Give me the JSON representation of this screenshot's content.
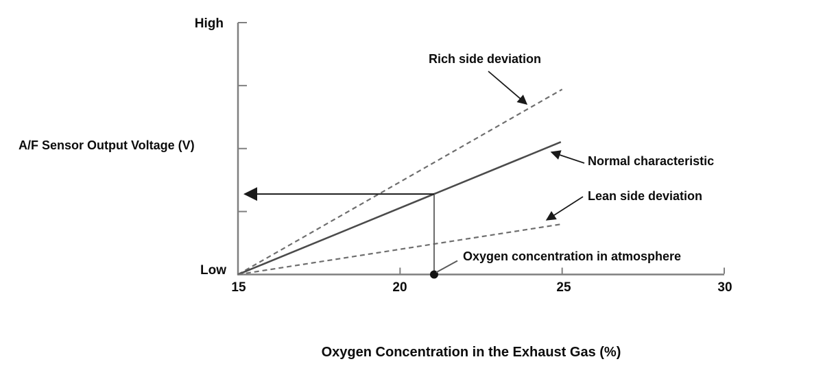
{
  "chart_data": {
    "type": "line",
    "xlabel": "Oxygen Concentration in the Exhaust Gas (%)",
    "ylabel": "A/F Sensor Output Voltage (V)",
    "y_axis_labels": {
      "high": "High",
      "low": "Low"
    },
    "xlim": [
      15,
      30
    ],
    "x_ticks": [
      15,
      20,
      25,
      30
    ],
    "y_ticks_rel": [
      0.25,
      0.5,
      0.75,
      1
    ],
    "grid": false,
    "legend_position": "inline-annotations",
    "series": [
      {
        "name": "Rich side deviation",
        "style": "dashed",
        "x": [
          15,
          25.0
        ],
        "y_rel": [
          0,
          0.735
        ]
      },
      {
        "name": "Normal characteristic",
        "style": "solid",
        "x": [
          15,
          24.96
        ],
        "y_rel": [
          0,
          0.526
        ]
      },
      {
        "name": "Lean side deviation",
        "style": "dashed",
        "x": [
          15,
          24.94
        ],
        "y_rel": [
          0,
          0.199
        ]
      }
    ],
    "marker": {
      "x": 21.05,
      "label": "Oxygen concentration in atmosphere"
    },
    "colors": {
      "axis": "#7f7f7f",
      "normal_line": "#4b4b4b",
      "deviation_line": "#6e6e6e",
      "guide_line": "#5a5a5a",
      "annotation_ink": "#1a1a1a",
      "text": "#000000"
    }
  }
}
